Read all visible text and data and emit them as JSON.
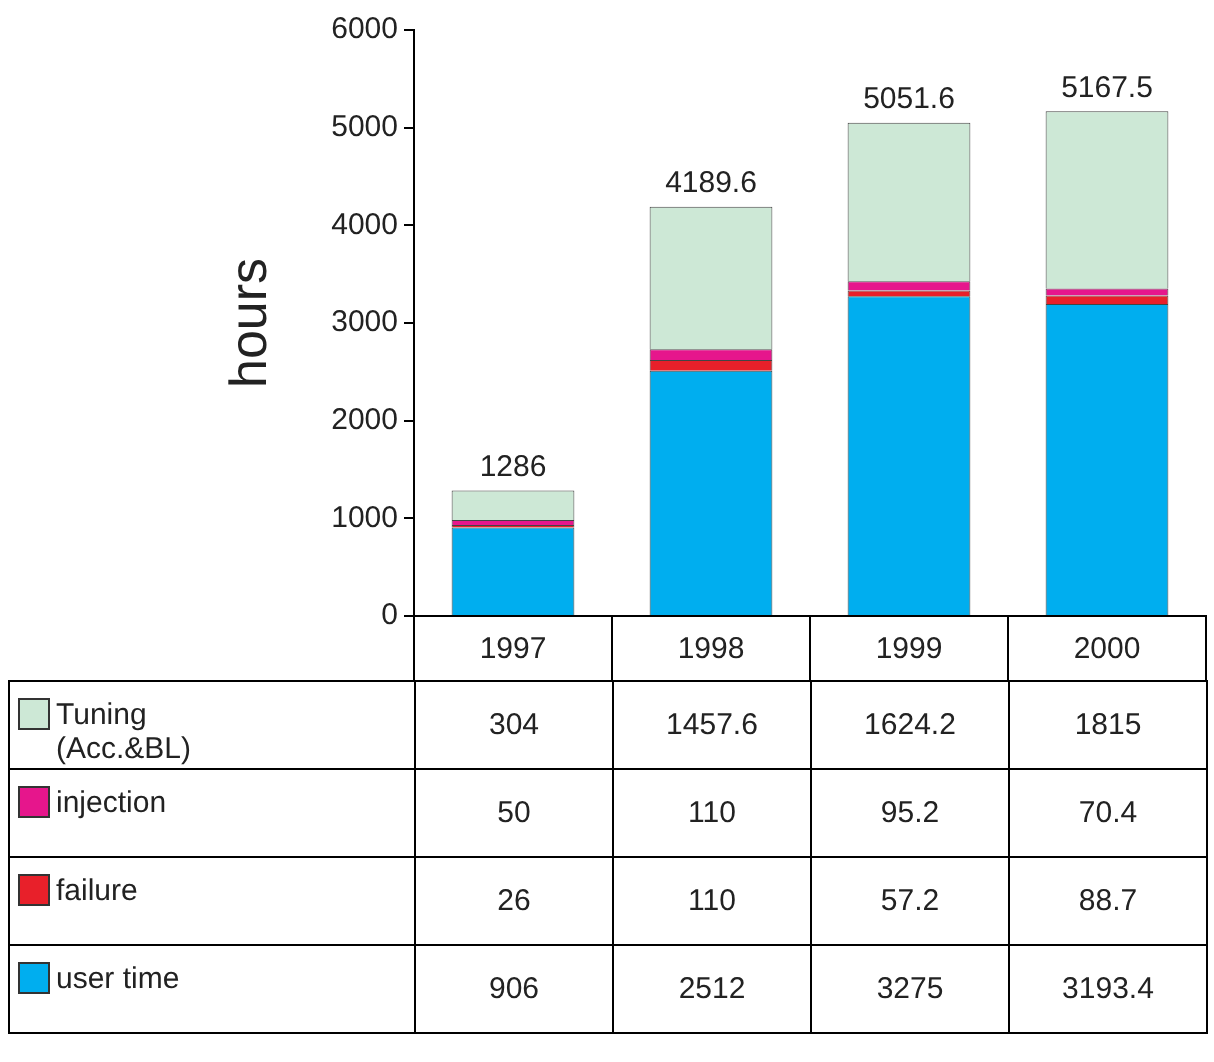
{
  "chart_data": {
    "type": "bar",
    "stacked": true,
    "ylabel": "hours",
    "categories": [
      "1997",
      "1998",
      "1999",
      "2000"
    ],
    "series": [
      {
        "name": "user time",
        "color": "#00aeef",
        "values": [
          906,
          2512,
          3275,
          3193.4
        ]
      },
      {
        "name": "failure",
        "color": "#e8202a",
        "values": [
          26,
          110,
          57.2,
          88.7
        ]
      },
      {
        "name": "injection",
        "color": "#e6168c",
        "values": [
          50,
          110,
          95.2,
          70.4
        ]
      },
      {
        "name": "Tuning (Acc.&BL)",
        "color": "#cde8d6",
        "values": [
          304,
          1457.6,
          1624.2,
          1815
        ]
      }
    ],
    "totals": [
      "1286",
      "4189.6",
      "5051.6",
      "5167.5"
    ],
    "data_labels": true,
    "legend": "bottom",
    "ylim": [
      0,
      6000
    ],
    "yticks": [
      0,
      1000,
      2000,
      3000,
      4000,
      5000,
      6000
    ]
  }
}
